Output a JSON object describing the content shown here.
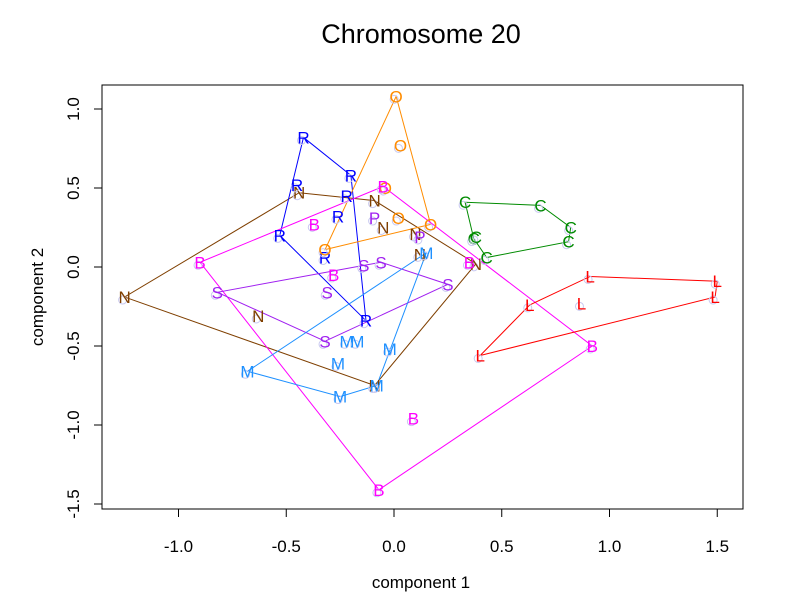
{
  "chart_data": {
    "type": "scatter",
    "title": "Chromosome 20",
    "xlabel": "component 1",
    "ylabel": "component 2",
    "xlim": [
      -1.35,
      1.6
    ],
    "ylim": [
      -1.55,
      1.15
    ],
    "xticks": [
      -1.0,
      -0.5,
      0.0,
      0.5,
      1.0,
      1.5
    ],
    "xtick_labels": [
      "-1.0",
      "-0.5",
      "0.0",
      "0.5",
      "1.0",
      "1.5"
    ],
    "yticks": [
      -1.5,
      -1.0,
      -0.5,
      0.0,
      0.5,
      1.0
    ],
    "ytick_labels": [
      "-1.5",
      "-1.0",
      "-0.5",
      "0.0",
      "0.5",
      "1.0"
    ],
    "grid": false,
    "legend": "none",
    "hull_outlines": true,
    "series": [
      {
        "name": "N",
        "color": "#7F3F00",
        "points": [
          [
            -1.25,
            -0.19
          ],
          [
            -0.44,
            0.47
          ],
          [
            -0.09,
            0.42
          ],
          [
            -0.05,
            0.25
          ],
          [
            0.1,
            0.21
          ],
          [
            0.12,
            0.08
          ],
          [
            0.38,
            0.02
          ],
          [
            -0.63,
            -0.31
          ],
          [
            -0.09,
            -0.75
          ]
        ]
      },
      {
        "name": "R",
        "color": "#0000FF",
        "points": [
          [
            -0.42,
            0.82
          ],
          [
            -0.2,
            0.58
          ],
          [
            -0.45,
            0.52
          ],
          [
            -0.22,
            0.45
          ],
          [
            -0.26,
            0.32
          ],
          [
            -0.53,
            0.2
          ],
          [
            -0.32,
            0.06
          ],
          [
            -0.13,
            -0.34
          ]
        ]
      },
      {
        "name": "O",
        "color": "#FF8C00",
        "points": [
          [
            0.01,
            1.08
          ],
          [
            0.03,
            0.77
          ],
          [
            -0.04,
            0.5
          ],
          [
            0.02,
            0.31
          ],
          [
            0.17,
            0.27
          ],
          [
            -0.32,
            0.11
          ]
        ]
      },
      {
        "name": "B",
        "color": "#FF00FF",
        "points": [
          [
            -0.9,
            0.03
          ],
          [
            -0.37,
            0.27
          ],
          [
            -0.05,
            0.51
          ],
          [
            -0.28,
            -0.05
          ],
          [
            0.35,
            0.03
          ],
          [
            0.92,
            -0.5
          ],
          [
            0.09,
            -0.96
          ],
          [
            -0.07,
            -1.41
          ]
        ]
      },
      {
        "name": "S",
        "color": "#A020F0",
        "points": [
          [
            -0.82,
            -0.16
          ],
          [
            -0.31,
            -0.16
          ],
          [
            -0.14,
            0.01
          ],
          [
            -0.06,
            0.03
          ],
          [
            0.25,
            -0.11
          ],
          [
            -0.32,
            -0.47
          ]
        ]
      },
      {
        "name": "P",
        "color": "#A020F0",
        "points": [
          [
            -0.09,
            0.31
          ],
          [
            0.12,
            0.19
          ]
        ]
      },
      {
        "name": "M",
        "color": "#1E90FF",
        "points": [
          [
            0.15,
            0.09
          ],
          [
            -0.22,
            -0.47
          ],
          [
            -0.17,
            -0.47
          ],
          [
            -0.02,
            -0.52
          ],
          [
            -0.26,
            -0.61
          ],
          [
            -0.68,
            -0.66
          ],
          [
            -0.25,
            -0.82
          ],
          [
            -0.08,
            -0.75
          ]
        ]
      },
      {
        "name": "C",
        "color": "#008B00",
        "points": [
          [
            0.33,
            0.41
          ],
          [
            0.68,
            0.39
          ],
          [
            0.82,
            0.25
          ],
          [
            0.81,
            0.16
          ],
          [
            0.37,
            0.18
          ],
          [
            0.38,
            0.19
          ],
          [
            0.43,
            0.06
          ]
        ]
      },
      {
        "name": "L",
        "color": "#FF0000",
        "points": [
          [
            0.91,
            -0.06
          ],
          [
            1.5,
            -0.09
          ],
          [
            1.49,
            -0.19
          ],
          [
            0.63,
            -0.24
          ],
          [
            0.87,
            -0.23
          ],
          [
            0.4,
            -0.56
          ]
        ]
      }
    ]
  }
}
